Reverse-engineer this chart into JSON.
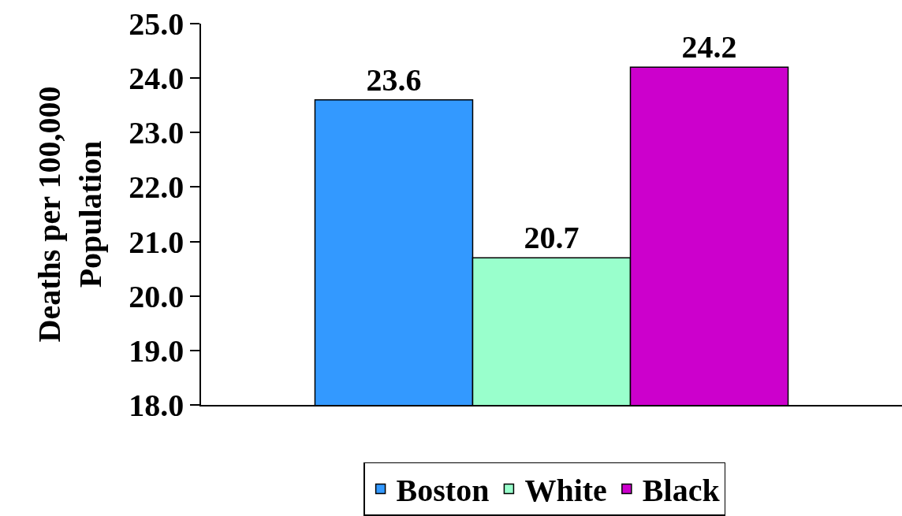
{
  "chart_data": {
    "type": "bar",
    "ylabel": "Deaths per 100,000 Population",
    "categories": [
      null
    ],
    "series": [
      {
        "name": "Boston",
        "color": "#3399ff",
        "values": [
          23.6
        ]
      },
      {
        "name": "White",
        "color": "#99ffcc",
        "values": [
          20.7
        ]
      },
      {
        "name": "Black",
        "color": "#cc00cc",
        "values": [
          24.2
        ]
      }
    ],
    "ylim": [
      18,
      25
    ],
    "yticks": [
      {
        "value": 18,
        "label": "18.0"
      },
      {
        "value": 19,
        "label": "19.0"
      },
      {
        "value": 20,
        "label": "20.0"
      },
      {
        "value": 21,
        "label": "21.0"
      },
      {
        "value": 22,
        "label": "22.0"
      },
      {
        "value": 23,
        "label": "23.0"
      },
      {
        "value": 24,
        "label": "24.0"
      },
      {
        "value": 25,
        "label": "25.0"
      }
    ],
    "data_labels": true,
    "legend": "bottom",
    "grid": false,
    "tick_labels": "y"
  }
}
